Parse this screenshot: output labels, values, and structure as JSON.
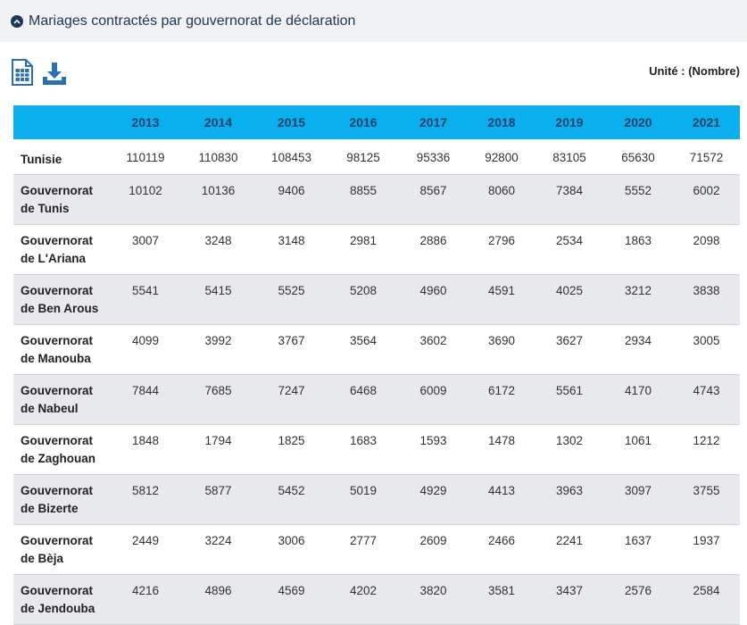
{
  "header": {
    "title": "Mariages contractés par gouvernorat de déclaration"
  },
  "toolbar": {
    "unit": "Unité : (Nombre)"
  },
  "table": {
    "columns": [
      "",
      "2013",
      "2014",
      "2015",
      "2016",
      "2017",
      "2018",
      "2019",
      "2020",
      "2021"
    ],
    "rows": [
      {
        "name": [
          "Tunisie"
        ],
        "values": [
          "110119",
          "110830",
          "108453",
          "98125",
          "95336",
          "92800",
          "83105",
          "65630",
          "71572"
        ]
      },
      {
        "name": [
          "Gouvernorat",
          "de Tunis"
        ],
        "values": [
          "10102",
          "10136",
          "9406",
          "8855",
          "8567",
          "8060",
          "7384",
          "5552",
          "6002"
        ]
      },
      {
        "name": [
          "Gouvernorat",
          "de L'Ariana"
        ],
        "values": [
          "3007",
          "3248",
          "3148",
          "2981",
          "2886",
          "2796",
          "2534",
          "1863",
          "2098"
        ]
      },
      {
        "name": [
          "Gouvernorat",
          "de Ben Arous"
        ],
        "values": [
          "5541",
          "5415",
          "5525",
          "5208",
          "4960",
          "4591",
          "4025",
          "3212",
          "3838"
        ]
      },
      {
        "name": [
          "Gouvernorat",
          "de Manouba"
        ],
        "values": [
          "4099",
          "3992",
          "3767",
          "3564",
          "3602",
          "3690",
          "3627",
          "2934",
          "3005"
        ]
      },
      {
        "name": [
          "Gouvernorat",
          "de Nabeul"
        ],
        "values": [
          "7844",
          "7685",
          "7247",
          "6468",
          "6009",
          "6172",
          "5561",
          "4170",
          "4743"
        ]
      },
      {
        "name": [
          "Gouvernorat",
          "de Zaghouan"
        ],
        "values": [
          "1848",
          "1794",
          "1825",
          "1683",
          "1593",
          "1478",
          "1302",
          "1061",
          "1212"
        ]
      },
      {
        "name": [
          "Gouvernorat",
          "de Bizerte"
        ],
        "values": [
          "5812",
          "5877",
          "5452",
          "5019",
          "4929",
          "4413",
          "3963",
          "3097",
          "3755"
        ]
      },
      {
        "name": [
          "Gouvernorat",
          "de Bèja"
        ],
        "values": [
          "2449",
          "3224",
          "3006",
          "2777",
          "2609",
          "2466",
          "2241",
          "1637",
          "1937"
        ]
      },
      {
        "name": [
          "Gouvernorat",
          "de Jendouba"
        ],
        "values": [
          "4216",
          "4896",
          "4569",
          "4202",
          "3820",
          "3581",
          "3437",
          "2576",
          "2584"
        ]
      }
    ]
  },
  "icons": {
    "collapse": "chevron-up-circle-icon",
    "spreadsheet": "spreadsheet-icon",
    "download": "download-icon"
  },
  "colors": {
    "header_bg": "#0ab0ee",
    "header_text": "#15406a",
    "title_text": "#1d3557",
    "icon_blue": "#2a6fb0",
    "row_shade": "#e8e9ec"
  }
}
